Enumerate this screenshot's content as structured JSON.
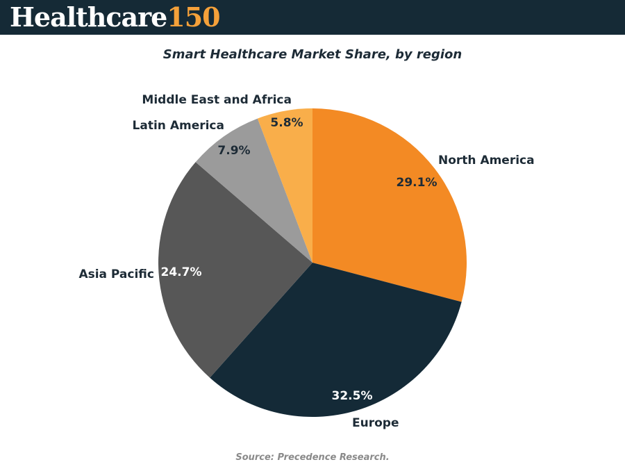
{
  "header": {
    "logo_word": "Healthcare",
    "logo_number": "150"
  },
  "chart_data": {
    "type": "pie",
    "title": "Smart Healthcare Market Share, by region",
    "source": "Source: Precedence Research.",
    "slices": [
      {
        "label": "North America",
        "value": 29.1,
        "value_label": "29.1%",
        "color": "#f38a24",
        "value_color": "#1d2b36"
      },
      {
        "label": "Europe",
        "value": 32.5,
        "value_label": "32.5%",
        "color": "#142a37",
        "value_color": "#ffffff"
      },
      {
        "label": "Asia Pacific",
        "value": 24.7,
        "value_label": "24.7%",
        "color": "#575757",
        "value_color": "#ffffff"
      },
      {
        "label": "Latin America",
        "value": 7.9,
        "value_label": "7.9%",
        "color": "#9b9b9b",
        "value_color": "#1d2b36"
      },
      {
        "label": "Middle East and Africa",
        "value": 5.8,
        "value_label": "5.8%",
        "color": "#f9ae4a",
        "value_color": "#1d2b36"
      }
    ]
  }
}
